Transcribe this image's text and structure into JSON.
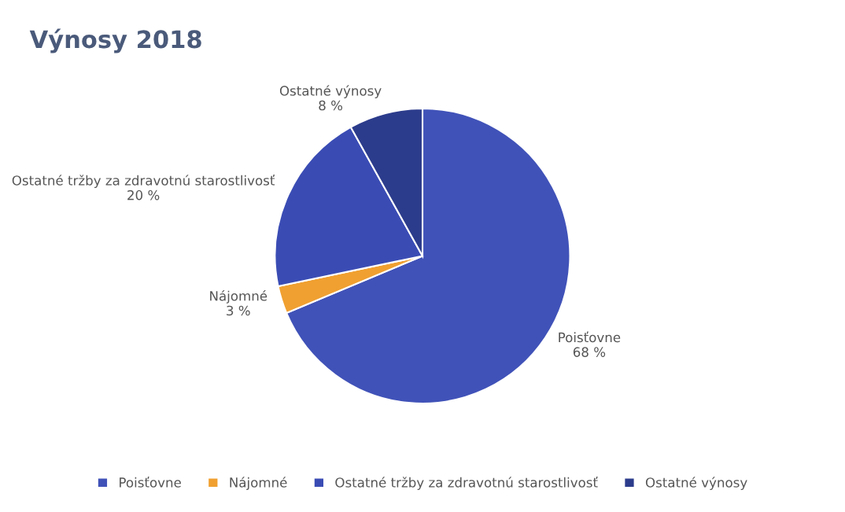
{
  "chart_data": {
    "type": "pie",
    "title": "Výnosy 2018",
    "categories": [
      "Poisťovne",
      "Nájomné",
      "Ostatné tržby za zdravotnú starostlivosť",
      "Ostatné výnosy"
    ],
    "values": [
      68,
      3,
      20,
      8
    ],
    "colors": [
      "#4052b8",
      "#f0a030",
      "#3a4cb4",
      "#2c3c8c"
    ],
    "value_labels": [
      "68 %",
      "3 %",
      "20 %",
      "8 %"
    ],
    "legend": "bottom"
  }
}
